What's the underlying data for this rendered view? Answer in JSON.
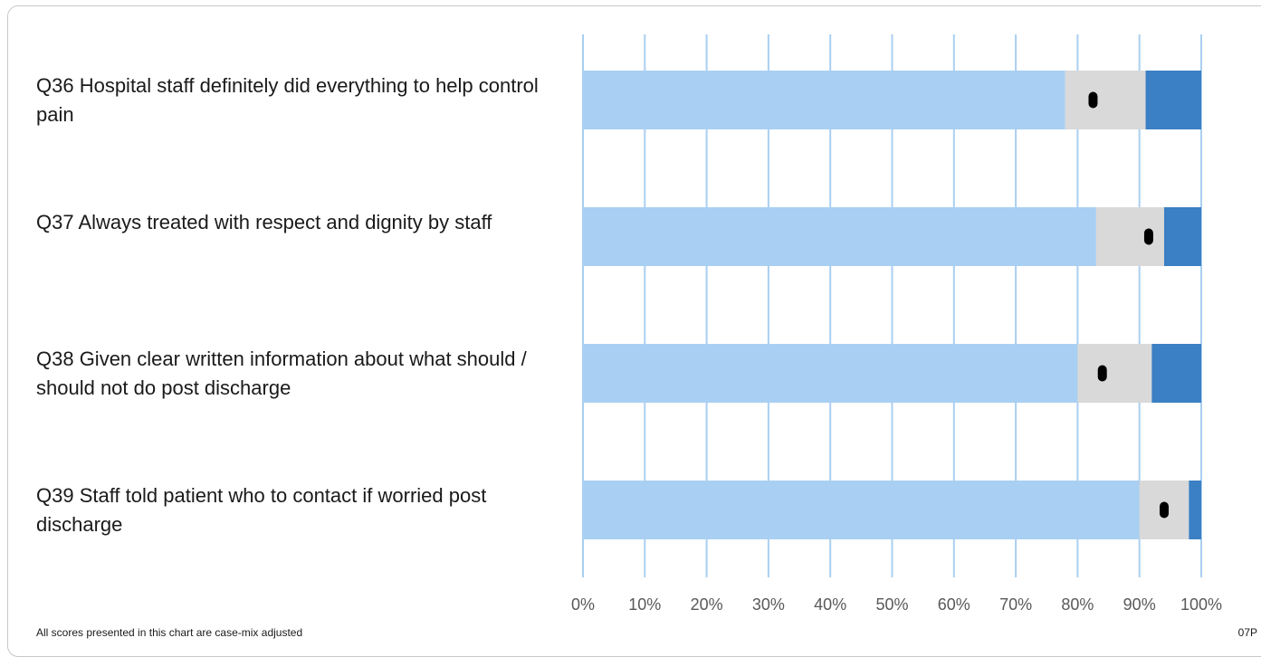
{
  "chart_data": {
    "type": "bar",
    "orientation": "horizontal",
    "stacked": true,
    "categories": [
      "Q36 Hospital staff definitely did everything to help control pain",
      "Q37 Always treated with respect and dignity by staff",
      "Q38 Given clear written information about what should / should not do post discharge",
      "Q39 Staff told patient who to contact if worried post discharge"
    ],
    "series": [
      {
        "values": [
          78,
          83,
          80,
          90
        ],
        "color": "#a9cff2"
      },
      {
        "values": [
          13,
          11,
          12,
          8
        ],
        "color": "#d9d9d9"
      },
      {
        "values": [
          9,
          6,
          8,
          2
        ],
        "color": "#3b7fc4"
      }
    ],
    "markers": {
      "values": [
        82.5,
        91.5,
        84,
        94
      ],
      "color": "#000000"
    },
    "x_ticks": [
      "0%",
      "10%",
      "20%",
      "30%",
      "40%",
      "50%",
      "60%",
      "70%",
      "80%",
      "90%",
      "100%"
    ],
    "xlim": [
      0,
      100
    ],
    "grid": true,
    "legend": "none"
  },
  "footer": {
    "note": "All scores presented in this chart are case-mix adjusted",
    "code": "07P"
  }
}
